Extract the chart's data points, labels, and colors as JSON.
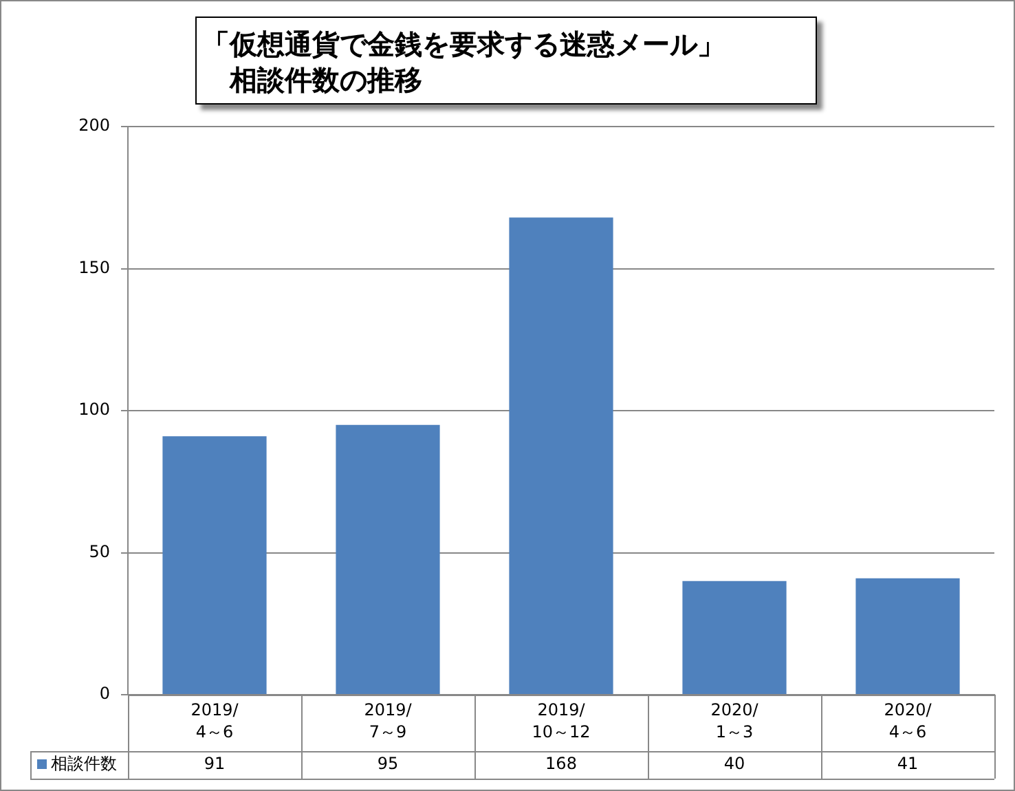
{
  "chart_data": {
    "type": "bar",
    "title": "「仮想通貨で金銭を要求する迷惑メール」",
    "subtitle": "相談件数の推移",
    "categories": [
      "2019/4～6",
      "2019/7～9",
      "2019/10～12",
      "2020/1～3",
      "2020/4～6"
    ],
    "series": [
      {
        "name": "相談件数",
        "color": "#4f81bd",
        "values": [
          91,
          95,
          168,
          40,
          41
        ]
      }
    ],
    "ylim": [
      0,
      200
    ],
    "yticks": [
      0,
      50,
      100,
      150,
      200
    ],
    "grid": "y",
    "legend": "bottom",
    "data_labels": true
  }
}
